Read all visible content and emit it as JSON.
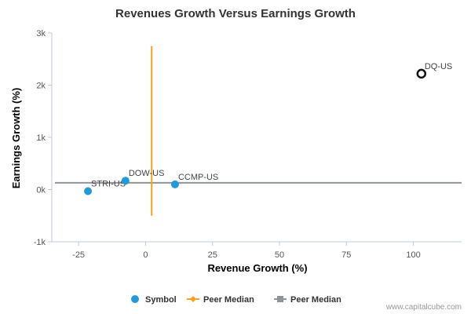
{
  "chart_data": {
    "type": "scatter",
    "title": "Revenues Growth Versus Earnings Growth",
    "xlabel": "Revenue Growth (%)",
    "ylabel": "Earnings Growth (%)",
    "xlim": [
      -35,
      118
    ],
    "ylim": [
      -1000,
      3000
    ],
    "x_ticks": [
      -25,
      0,
      25,
      50,
      75,
      100
    ],
    "x_tick_labels": [
      "-25",
      "0",
      "25",
      "50",
      "75",
      "100"
    ],
    "y_ticks": [
      -1000,
      0,
      1000,
      2000,
      3000
    ],
    "y_tick_labels": [
      "-1k",
      "0k",
      "1k",
      "2k",
      "3k"
    ],
    "grid": false,
    "points": [
      {
        "label": "STRI-US",
        "x": -21.5,
        "y": -30,
        "highlight": false
      },
      {
        "label": "DOW-US",
        "x": -7.5,
        "y": 170,
        "highlight": false
      },
      {
        "label": "CCMP-US",
        "x": 11,
        "y": 100,
        "highlight": false
      },
      {
        "label": "DQ-US",
        "x": 103,
        "y": 2220,
        "highlight": true
      }
    ],
    "peer_median_revenue": 2.3,
    "peer_median_earnings": 130,
    "revenue_median_line_range": [
      -500,
      2750
    ],
    "legend": {
      "position": "bottom",
      "items": [
        {
          "label": "Symbol",
          "color": "#1f9bdb",
          "shape": "circle"
        },
        {
          "label": "Peer Median",
          "color": "#f2a21b",
          "shape": "line-diamond"
        },
        {
          "label": "Peer Median",
          "color": "#8f949c",
          "shape": "line-square"
        }
      ]
    },
    "colors": {
      "point": "#1f9bdb",
      "highlight_stroke": "#111111",
      "revenue_median": "#f2a21b",
      "earnings_median": "#8f949c",
      "axis": "#c0c8d8"
    }
  },
  "credit": "www.capitalcube.com"
}
